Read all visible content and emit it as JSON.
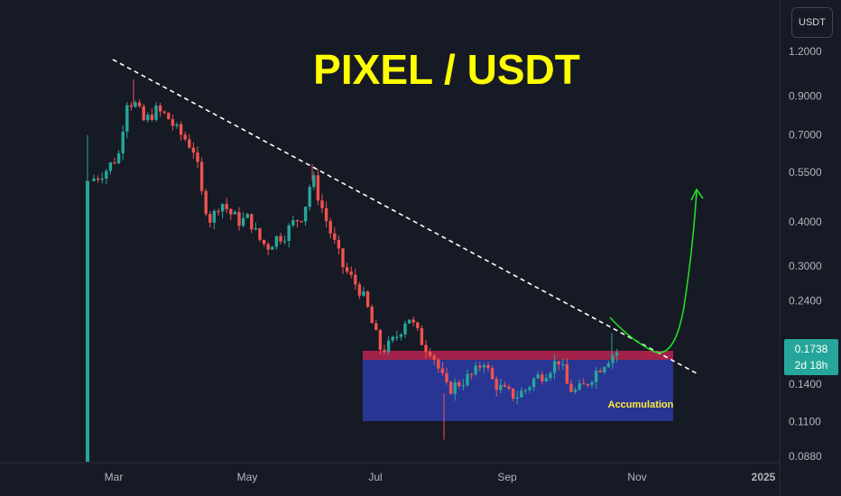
{
  "chart_data": {
    "type": "candlestick",
    "title": "PIXEL / USDT",
    "currency": "USDT",
    "y_scale": "log",
    "ylim": [
      0.08,
      1.3
    ],
    "y_ticks": [
      "1.2000",
      "0.9000",
      "0.7000",
      "0.5500",
      "0.4000",
      "0.3000",
      "0.2400",
      "0.1400",
      "0.1100",
      "0.0880"
    ],
    "x_ticks": [
      "Mar",
      "May",
      "Jul",
      "Sep",
      "Nov",
      "2025"
    ],
    "current_price": "0.1738",
    "countdown": "2d 18h",
    "annotation": "Accumulation",
    "colors": {
      "up": "#26a69a",
      "down": "#ef5350",
      "trend": "#ffffff",
      "projection": "#22dd22",
      "zone": "#283593",
      "resistance": "#a3224a"
    }
  }
}
